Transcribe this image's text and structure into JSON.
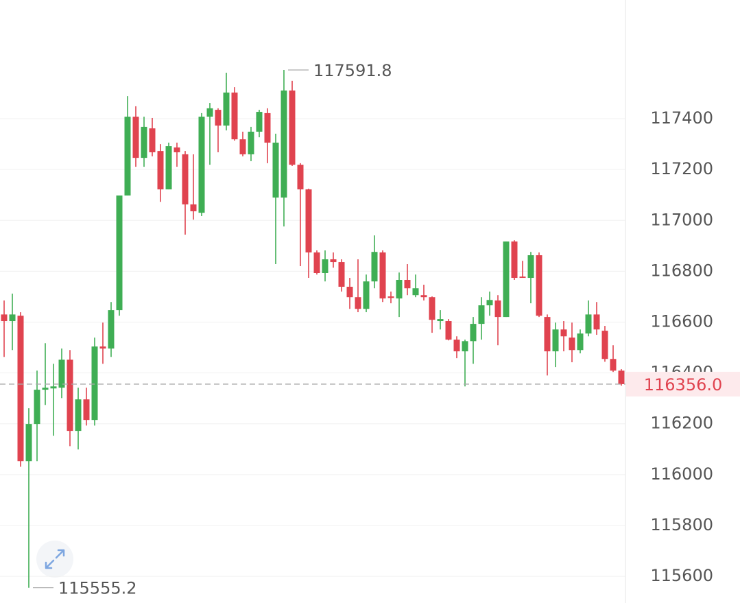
{
  "chart_data": {
    "type": "candlestick",
    "open": [
      116630,
      116604,
      116625,
      116053,
      116199,
      116334,
      116339,
      116342,
      116452,
      116172,
      116296,
      116215,
      116504,
      116496,
      116647,
      117098,
      117408,
      117246,
      117362,
      117273,
      117122,
      117287,
      117260,
      117063,
      117030,
      117408,
      117435,
      117373,
      117503,
      117319,
      117260,
      117349,
      117422,
      117090,
      117090,
      117511,
      117219,
      117122,
      116874,
      116793,
      116847,
      116836,
      116739,
      116698,
      116652,
      116760,
      116874,
      116701,
      116693,
      116766,
      116706,
      116706,
      116698,
      116604,
      116604,
      116531,
      116485,
      116525,
      116593,
      116666,
      116685,
      116620,
      116917,
      116779,
      116774,
      116863,
      116620,
      116485,
      116571,
      116539,
      116490,
      116555,
      116630,
      116566,
      116455,
      116409
    ],
    "high": [
      116685,
      116712,
      116639,
      116261,
      116409,
      116517,
      116436,
      116496,
      116490,
      116342,
      116342,
      116539,
      116598,
      116679,
      117098,
      117489,
      117449,
      117408,
      117403,
      117300,
      117306,
      117306,
      117273,
      117260,
      117422,
      117462,
      117441,
      117581,
      117524,
      117349,
      117368,
      117435,
      117441,
      117341,
      117591.8,
      117549,
      117225,
      117125,
      116882,
      116882,
      116874,
      116847,
      116774,
      116847,
      116787,
      116941,
      116882,
      116720,
      116795,
      116828,
      116787,
      116747,
      116701,
      116647,
      116612,
      116544,
      116531,
      116620,
      116698,
      116720,
      116706,
      116917,
      116922,
      116841,
      116876,
      116874,
      116630,
      116598,
      116604,
      116598,
      116571,
      116685,
      116679,
      116585,
      116509,
      116415
    ],
    "low": [
      116463,
      116490,
      116031,
      115555.2,
      116053,
      116274,
      116153,
      116301,
      116112,
      116099,
      116193,
      116193,
      116436,
      116463,
      116625,
      117098,
      117211,
      117211,
      117252,
      117073,
      117122,
      117211,
      116944,
      117003,
      117017,
      117219,
      117268,
      117354,
      117314,
      117252,
      117233,
      117327,
      117225,
      116828,
      116976,
      117214,
      116820,
      116774,
      116787,
      116760,
      116814,
      116720,
      116652,
      116639,
      116639,
      116733,
      116679,
      116674,
      116620,
      116706,
      116698,
      116685,
      116558,
      116571,
      116528,
      116458,
      116347,
      116436,
      116531,
      116625,
      116509,
      116620,
      116766,
      116774,
      116674,
      116620,
      116390,
      116423,
      116485,
      116442,
      116477,
      116544,
      116550,
      116444,
      116404,
      116350
    ],
    "close": [
      116604,
      116630,
      116053,
      116199,
      116334,
      116342,
      116347,
      116452,
      116172,
      116296,
      116215,
      116504,
      116496,
      116647,
      117098,
      117408,
      117246,
      117368,
      117268,
      117122,
      117292,
      117268,
      117063,
      117036,
      117408,
      117441,
      117373,
      117503,
      117319,
      117260,
      117349,
      117427,
      117306,
      117306,
      117511,
      117219,
      117122,
      116874,
      116793,
      116847,
      116836,
      116739,
      116698,
      116652,
      116760,
      116876,
      116693,
      116695,
      116766,
      116733,
      116733,
      116698,
      116609,
      116612,
      116531,
      116485,
      116525,
      116593,
      116666,
      116687,
      116620,
      116917,
      116774,
      116774,
      116863,
      116625,
      116485,
      116571,
      116544,
      116490,
      116555,
      116630,
      116571,
      116455,
      116409,
      116356.0
    ],
    "up_color": "#3fae54",
    "down_color": "#e0434f",
    "ylim": [
      115495,
      117867
    ],
    "yticks": [
      115600,
      115800,
      116000,
      116200,
      116400,
      116600,
      116800,
      117000,
      117200,
      117400
    ],
    "grid": true,
    "last_price": {
      "value": 116356.0,
      "label": "116356.0"
    }
  }
}
